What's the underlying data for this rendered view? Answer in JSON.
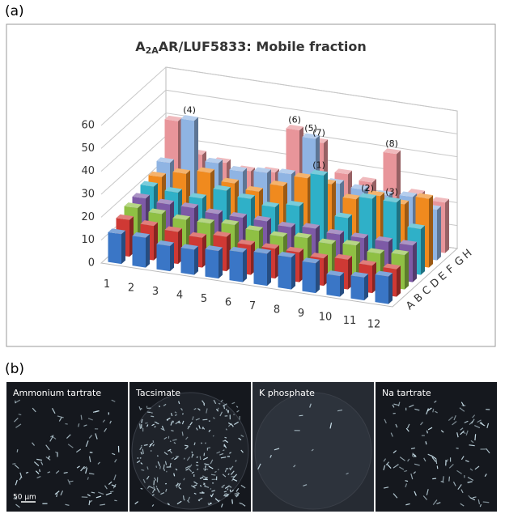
{
  "panels": {
    "a": "(a)",
    "b": "(b)"
  },
  "chart_data": {
    "type": "bar3d",
    "title": [
      "A",
      "2A",
      "AR/LUF5833: Mobile fraction"
    ],
    "categories": [
      "1",
      "2",
      "3",
      "4",
      "5",
      "6",
      "7",
      "8",
      "9",
      "10",
      "11",
      "12"
    ],
    "series": [
      {
        "name": "A",
        "color": "#3a76c6",
        "values": [
          13,
          13,
          11,
          11,
          12,
          13,
          14,
          14,
          13,
          9,
          10,
          12
        ]
      },
      {
        "name": "B",
        "color": "#cf3934",
        "values": [
          16,
          15,
          14,
          13,
          15,
          13,
          13,
          13,
          12,
          13,
          12,
          12
        ]
      },
      {
        "name": "C",
        "color": "#8fc044",
        "values": [
          18,
          17,
          16,
          16,
          17,
          16,
          15,
          16,
          15,
          16,
          14,
          15
        ]
      },
      {
        "name": "D",
        "color": "#7d5aa6",
        "values": [
          19,
          18,
          18,
          17,
          17,
          17,
          16,
          17,
          16,
          16,
          16,
          16
        ]
      },
      {
        "name": "E",
        "color": "#2fb0c8",
        "values": [
          21,
          20,
          19,
          24,
          22,
          20,
          22,
          37,
          20,
          30,
          30,
          20
        ]
      },
      {
        "name": "F",
        "color": "#f08a1e",
        "values": [
          22,
          25,
          27,
          24,
          22,
          26,
          31,
          30,
          25,
          28,
          26,
          30
        ]
      },
      {
        "name": "G",
        "color": "#8fb4e3",
        "values": [
          25,
          45,
          28,
          26,
          27,
          28,
          45,
          27,
          26,
          25,
          26,
          22
        ]
      },
      {
        "name": "H",
        "color": "#e8959a",
        "values": [
          40,
          27,
          25,
          23,
          24,
          44,
          40,
          28,
          26,
          40,
          24,
          22
        ]
      }
    ],
    "annotations": [
      {
        "text": "(4)",
        "series": "G",
        "category": "2"
      },
      {
        "text": "(6)",
        "series": "H",
        "category": "6"
      },
      {
        "text": "(5)",
        "series": "G",
        "category": "7"
      },
      {
        "text": "(7)",
        "series": "H",
        "category": "7"
      },
      {
        "text": "(1)",
        "series": "E",
        "category": "8"
      },
      {
        "text": "(2)",
        "series": "E",
        "category": "10"
      },
      {
        "text": "(3)",
        "series": "E",
        "category": "11"
      },
      {
        "text": "(8)",
        "series": "H",
        "category": "10"
      }
    ],
    "ylim": [
      0,
      60
    ],
    "yticks": [
      0,
      10,
      20,
      30,
      40,
      50,
      60
    ],
    "grid": true
  },
  "micrographs": [
    {
      "label": "Ammonium tartrate"
    },
    {
      "label": "Tacsimate"
    },
    {
      "label": "K phosphate"
    },
    {
      "label": "Na tartrate"
    }
  ],
  "scale_bar": "50 μm"
}
